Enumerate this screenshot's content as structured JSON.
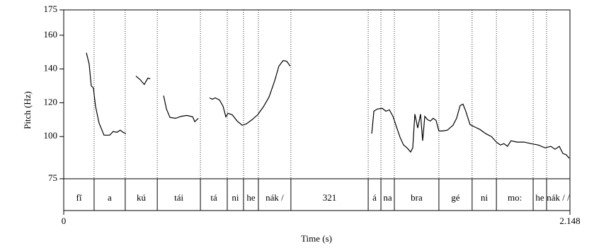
{
  "chart_data": {
    "type": "line",
    "y_label": "Pitch (Hz)",
    "x_label": "Time (s)",
    "xlim": [
      0,
      2.148
    ],
    "xticks": [
      0,
      2.148
    ],
    "ylim": [
      75,
      175
    ],
    "yticks": [
      75,
      100,
      120,
      140,
      160,
      175
    ],
    "series": [
      {
        "color": "#000000",
        "x": [
          0.096,
          0.108,
          0.117,
          0.126,
          0.135,
          0.15,
          0.171,
          0.195,
          0.21,
          0.225,
          0.24,
          0.252,
          0.264,
          null,
          0.306,
          0.324,
          0.342,
          0.357,
          0.367,
          null,
          0.424,
          0.436,
          0.451,
          0.475,
          0.499,
          0.523,
          0.547,
          0.556,
          0.571,
          null,
          0.619,
          0.631,
          0.643,
          0.661,
          0.676,
          0.688,
          0.697,
          0.715,
          0.736,
          0.757,
          0.775,
          0.799,
          0.823,
          0.847,
          0.871,
          0.895,
          0.913,
          0.931,
          0.946,
          0.961,
          null,
          1.307,
          1.316,
          1.331,
          1.352,
          1.367,
          1.382,
          1.397,
          1.412,
          1.427,
          1.442,
          1.457,
          1.472,
          1.481,
          1.49,
          1.502,
          1.514,
          1.523,
          1.532,
          1.544,
          1.556,
          1.568,
          1.58,
          1.592,
          1.607,
          1.628,
          1.652,
          1.667,
          1.682,
          1.694,
          1.706,
          1.724,
          1.742,
          1.766,
          1.791,
          1.815,
          1.836,
          1.853,
          1.868,
          1.883,
          1.898,
          1.923,
          1.953,
          1.983,
          2.013,
          2.043,
          2.067,
          2.085,
          2.103,
          2.118,
          2.133,
          2.145
        ],
        "values": [
          149.6,
          143,
          130,
          128.8,
          118,
          108,
          100.8,
          100.8,
          103,
          102.5,
          103.8,
          102.5,
          101.7,
          null,
          135.8,
          133.8,
          130.8,
          134.6,
          134.2,
          null,
          124.2,
          116.3,
          111.3,
          110.8,
          112,
          112.5,
          111.7,
          108.8,
          110.8,
          null,
          122.9,
          122.1,
          122.9,
          121.7,
          118,
          111.7,
          113.8,
          112.9,
          109.2,
          106.7,
          107.5,
          110,
          112.9,
          117.5,
          123.3,
          132.9,
          141.7,
          145,
          144.6,
          141.7,
          null,
          101.7,
          115,
          116.3,
          116.7,
          115,
          115.8,
          112,
          105.8,
          99.6,
          95,
          93.3,
          90.8,
          93.3,
          113.3,
          105,
          113.3,
          97.5,
          112,
          110,
          109.2,
          110.8,
          109.6,
          103.3,
          103.3,
          103.8,
          106.7,
          110.8,
          118.3,
          119.2,
          115,
          107.1,
          105.8,
          104.2,
          101.7,
          100,
          96.7,
          95,
          95.8,
          94.2,
          97.5,
          96.7,
          96.7,
          95.8,
          95,
          93.3,
          94.2,
          92.5,
          94.2,
          90,
          89.2,
          87.1
        ]
      }
    ],
    "tier": {
      "boundaries": [
        0.129,
        0.261,
        0.397,
        0.58,
        0.694,
        0.763,
        0.826,
        0.964,
        1.292,
        1.346,
        1.403,
        1.592,
        1.733,
        1.836,
        1.992,
        2.049
      ],
      "labels": [
        "fĩ",
        "a",
        "kú",
        "tái",
        "tá",
        "ni",
        "he",
        "nák /",
        "321",
        "á",
        "na",
        "bra",
        "gé",
        "ni",
        "mo:",
        "he",
        "nák / /"
      ]
    }
  }
}
